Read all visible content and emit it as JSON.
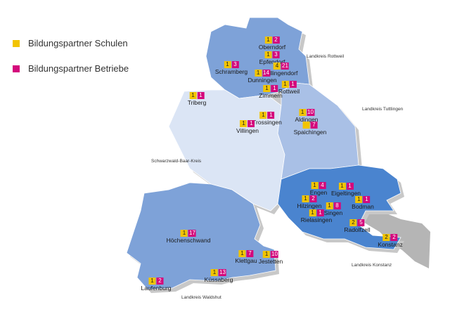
{
  "legend": {
    "schools": {
      "label": "Bildungspartner Schulen",
      "color": "#f2c400"
    },
    "companies": {
      "label": "Bildungspartner Betriebe",
      "color": "#d4087c"
    }
  },
  "regions": [
    {
      "id": "rottweil",
      "label": "Landkreis Rottweil"
    },
    {
      "id": "tuttlingen",
      "label": "Landkreis Tuttlingen"
    },
    {
      "id": "sbk",
      "label": "Schwarzwald-Baar-Kreis"
    },
    {
      "id": "konstanz",
      "label": "Landkreis Konstanz"
    },
    {
      "id": "waldshut",
      "label": "Landkreis Waldshut"
    }
  ],
  "places": [
    {
      "id": "oberndorf",
      "name": "Oberndorf",
      "schools": "1",
      "companies": "2"
    },
    {
      "id": "epfendorf",
      "name": "Epfendorf",
      "schools": "1",
      "companies": "3"
    },
    {
      "id": "schramberg",
      "name": "Schramberg",
      "schools": "1",
      "companies": "3"
    },
    {
      "id": "villingendorf",
      "name": "Villingendorf",
      "schools": "4",
      "companies": "21"
    },
    {
      "id": "dunningen",
      "name": "Dunningen",
      "schools": "1",
      "companies": "14"
    },
    {
      "id": "rottweil",
      "name": "Rottweil",
      "schools": "1",
      "companies": "1"
    },
    {
      "id": "zimmern",
      "name": "Zimmern",
      "schools": "1",
      "companies": "1"
    },
    {
      "id": "triberg",
      "name": "Triberg",
      "schools": "1",
      "companies": "1"
    },
    {
      "id": "trossingen",
      "name": "Trossingen",
      "schools": "1",
      "companies": "1"
    },
    {
      "id": "villingen",
      "name": "Villingen",
      "schools": "1",
      "companies": "1"
    },
    {
      "id": "aldingen",
      "name": "Aldingen",
      "schools": "1",
      "companies": "10"
    },
    {
      "id": "spaichingen",
      "name": "Spaichingen",
      "schools": "",
      "companies": "7"
    },
    {
      "id": "engen",
      "name": "Engen",
      "schools": "1",
      "companies": "4"
    },
    {
      "id": "eigeltingen",
      "name": "Eigeltingen",
      "schools": "1",
      "companies": "1"
    },
    {
      "id": "hilzingen",
      "name": "Hilzingen",
      "schools": "1",
      "companies": "2"
    },
    {
      "id": "bodman",
      "name": "Bodman",
      "schools": "1",
      "companies": "1"
    },
    {
      "id": "singen",
      "name": "Singen",
      "schools": "1",
      "companies": "8"
    },
    {
      "id": "rielasingen",
      "name": "Rielasingen",
      "schools": "1",
      "companies": "1"
    },
    {
      "id": "radolfzell",
      "name": "Radolfzell",
      "schools": "2",
      "companies": "5"
    },
    {
      "id": "konstanz",
      "name": "Konstanz",
      "schools": "2",
      "companies": "2"
    },
    {
      "id": "hoechenschwand",
      "name": "Höchenschwand",
      "schools": "1",
      "companies": "17"
    },
    {
      "id": "klettgau",
      "name": "Klettgau",
      "schools": "1",
      "companies": "7"
    },
    {
      "id": "jestetten",
      "name": "Jestetten",
      "schools": "1",
      "companies": "10"
    },
    {
      "id": "kuessaberg",
      "name": "Küssaberg",
      "schools": "1",
      "companies": "13"
    },
    {
      "id": "laufenburg",
      "name": "Laufenburg",
      "schools": "1",
      "companies": "2"
    }
  ]
}
